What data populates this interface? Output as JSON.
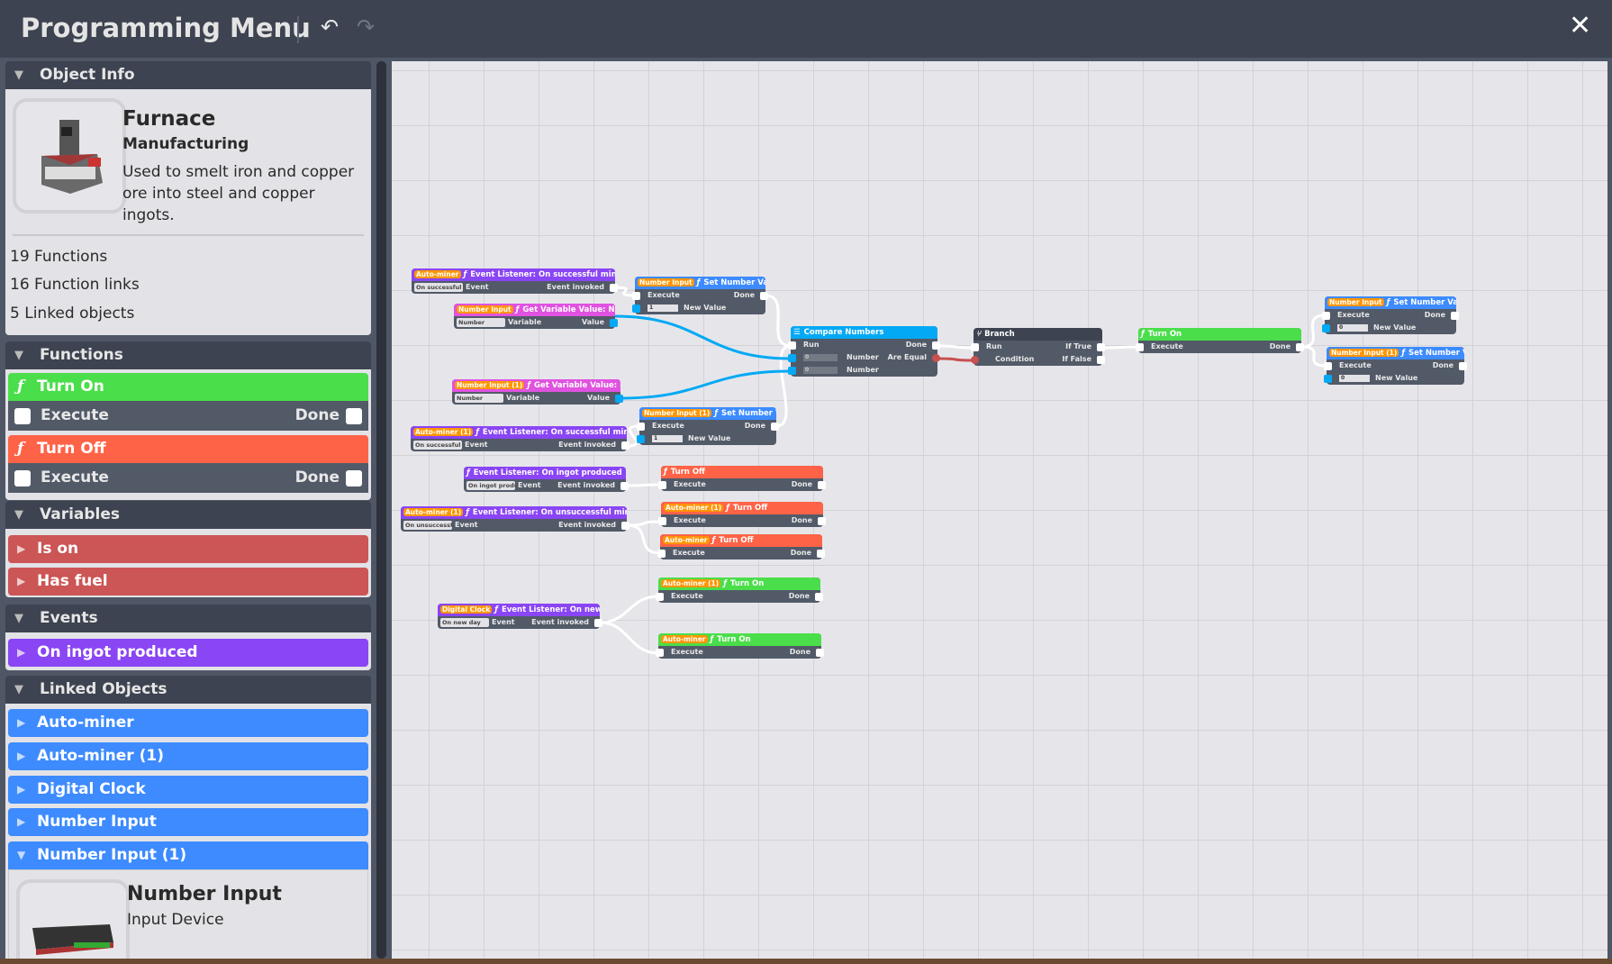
{
  "header": {
    "title": "Programming Menu",
    "undo_icon": "undo-icon",
    "redo_icon": "redo-icon",
    "close_icon": "close-icon"
  },
  "colors": {
    "event": "#8a45f5",
    "function_on": "#4bde4b",
    "function_off": "#ff6347",
    "number_input": "#3d8bff",
    "get_variable": "#e052e0",
    "compare": "#03a9f4",
    "branch": "#3d4350",
    "variable": "#cc5555",
    "linked": "#3d8bff",
    "badge": "#ff9500",
    "exec_wire": "#ffffff",
    "number_wire": "#03a9f4",
    "bool_wire": "#c85050"
  },
  "sidebar": {
    "object_info": {
      "header": "Object Info",
      "name": "Furnace",
      "category": "Manufacturing",
      "description": "Used to smelt iron and copper ore into steel and copper ingots.",
      "functions_count": "19 Functions",
      "links_count": "16 Function links",
      "linked_count": "5 Linked objects"
    },
    "functions": {
      "header": "Functions",
      "items": [
        {
          "label": "Turn On",
          "left": "Execute",
          "right": "Done"
        },
        {
          "label": "Turn Off",
          "left": "Execute",
          "right": "Done"
        }
      ]
    },
    "variables": {
      "header": "Variables",
      "items": [
        "Is on",
        "Has fuel"
      ]
    },
    "events": {
      "header": "Events",
      "items": [
        "On ingot produced"
      ]
    },
    "linked_objects": {
      "header": "Linked Objects",
      "items": [
        "Auto-miner",
        "Auto-miner (1)",
        "Digital Clock",
        "Number Input",
        "Number Input (1)"
      ],
      "expanded": {
        "name": "Number Input",
        "category": "Input Device"
      }
    }
  },
  "nodes": [
    {
      "badge": "Auto-miner",
      "icon": "function-icon",
      "title": "Event Listener: On successful mine attempt",
      "color": "event",
      "rows": [
        {
          "dropdown": "On successful mi",
          "left": "Event",
          "right": "Event invoked",
          "right_port": "exec"
        }
      ]
    },
    {
      "badge": "Number Input",
      "icon": "function-icon",
      "title": "Set Number Value",
      "color": "number_input",
      "rows": [
        {
          "left_port": "exec",
          "left": "Execute",
          "right": "Done",
          "right_port": "exec"
        },
        {
          "left_port": "number",
          "input": "1",
          "left": "New Value"
        }
      ]
    },
    {
      "badge": "Number Input",
      "icon": "function-icon",
      "title": "Get Variable Value: Number",
      "color": "get_variable",
      "rows": [
        {
          "dropdown": "Number",
          "left": "Variable",
          "right": "Value",
          "right_port": "number"
        }
      ]
    },
    {
      "badge": "Number Input (1)",
      "icon": "function-icon",
      "title": "Get Variable Value: Number",
      "color": "get_variable",
      "rows": [
        {
          "dropdown": "Number",
          "left": "Variable",
          "right": "Value",
          "right_port": "number"
        }
      ]
    },
    {
      "badge": "Number Input (1)",
      "icon": "function-icon",
      "title": "Set Number Value",
      "color": "number_input",
      "rows": [
        {
          "left_port": "exec",
          "left": "Execute",
          "right": "Done",
          "right_port": "exec"
        },
        {
          "left_port": "number",
          "input": "1",
          "left": "New Value"
        }
      ]
    },
    {
      "badge": "Auto-miner (1)",
      "icon": "function-icon",
      "title": "Event Listener: On successful mine attempt",
      "color": "event",
      "rows": [
        {
          "dropdown": "On successful mi",
          "left": "Event",
          "right": "Event invoked",
          "right_port": "exec"
        }
      ]
    },
    {
      "badge": "",
      "icon": "list-icon",
      "title": "Compare Numbers",
      "color": "compare",
      "rows": [
        {
          "left_port": "exec",
          "left": "Run",
          "right": "Done",
          "right_port": "exec"
        },
        {
          "left_port": "number",
          "input_dark": "0",
          "left": "Number",
          "right": "Are Equal",
          "right_port": "bool"
        },
        {
          "left_port": "number",
          "input_dark": "0",
          "left": "Number"
        }
      ]
    },
    {
      "badge": "",
      "icon": "branch-icon",
      "title": "Branch",
      "color": "branch",
      "rows": [
        {
          "left_port": "exec",
          "left": "Run",
          "right": "If True",
          "right_port": "exec"
        },
        {
          "left_port": "bool",
          "left": "Condition",
          "right": "If False",
          "right_port": "exec"
        }
      ]
    },
    {
      "badge": "",
      "icon": "function-icon",
      "title": "Turn On",
      "color": "function_on",
      "rows": [
        {
          "left_port": "exec",
          "left": "Execute",
          "right": "Done",
          "right_port": "exec"
        }
      ]
    },
    {
      "badge": "Number Input",
      "icon": "function-icon",
      "title": "Set Number Value",
      "color": "number_input",
      "rows": [
        {
          "left_port": "exec",
          "left": "Execute",
          "right": "Done",
          "right_port": "exec"
        },
        {
          "left_port": "number",
          "input": "0",
          "left": "New Value"
        }
      ]
    },
    {
      "badge": "Number Input (1)",
      "icon": "function-icon",
      "title": "Set Number Value",
      "color": "number_input",
      "rows": [
        {
          "left_port": "exec",
          "left": "Execute",
          "right": "Done",
          "right_port": "exec"
        },
        {
          "left_port": "number",
          "input": "0",
          "left": "New Value"
        }
      ]
    },
    {
      "badge": "",
      "icon": "function-icon",
      "title": "Event Listener: On ingot produced",
      "color": "event",
      "rows": [
        {
          "dropdown": "On ingot produc",
          "left": "Event",
          "right": "Event invoked",
          "right_port": "exec"
        }
      ]
    },
    {
      "badge": "",
      "icon": "function-icon",
      "title": "Turn Off",
      "color": "function_off",
      "rows": [
        {
          "left_port": "exec",
          "left": "Execute",
          "right": "Done",
          "right_port": "exec"
        }
      ]
    },
    {
      "badge": "Auto-miner (1)",
      "icon": "function-icon",
      "title": "Event Listener: On unsuccessful mine attempt",
      "color": "event",
      "rows": [
        {
          "dropdown": "On unsuccessful",
          "left": "Event",
          "right": "Event invoked",
          "right_port": "exec"
        }
      ]
    },
    {
      "badge": "Auto-miner (1)",
      "icon": "function-icon",
      "title": "Turn Off",
      "color": "function_off",
      "rows": [
        {
          "left_port": "exec",
          "left": "Execute",
          "right": "Done",
          "right_port": "exec"
        }
      ]
    },
    {
      "badge": "Auto-miner",
      "icon": "function-icon",
      "title": "Turn Off",
      "color": "function_off",
      "rows": [
        {
          "left_port": "exec",
          "left": "Execute",
          "right": "Done",
          "right_port": "exec"
        }
      ]
    },
    {
      "badge": "Auto-miner (1)",
      "icon": "function-icon",
      "title": "Turn On",
      "color": "function_on",
      "rows": [
        {
          "left_port": "exec",
          "left": "Execute",
          "right": "Done",
          "right_port": "exec"
        }
      ]
    },
    {
      "badge": "Digital Clock",
      "icon": "function-icon",
      "title": "Event Listener: On new day",
      "color": "event",
      "rows": [
        {
          "dropdown": "On new day",
          "left": "Event",
          "right": "Event invoked",
          "right_port": "exec"
        }
      ]
    },
    {
      "badge": "Auto-miner",
      "icon": "function-icon",
      "title": "Turn On",
      "color": "function_on",
      "rows": [
        {
          "left_port": "exec",
          "left": "Execute",
          "right": "Done",
          "right_port": "exec"
        }
      ]
    }
  ]
}
